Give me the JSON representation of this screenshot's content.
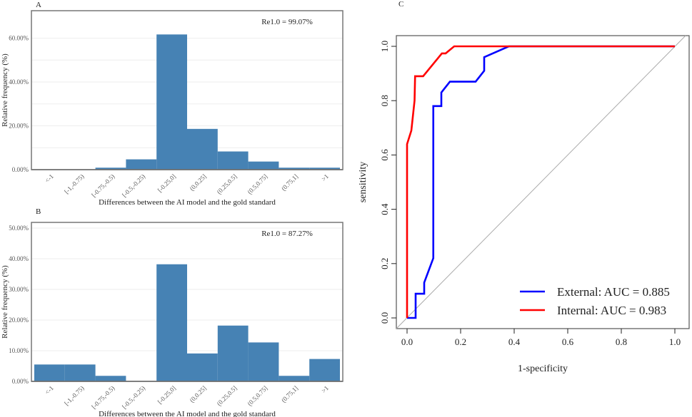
{
  "chart_data": [
    {
      "type": "bar",
      "panel": "A",
      "title": "",
      "annotation": "Re1.0 = 99.07%",
      "xlabel": "Differences between the AI model and the gold standard",
      "ylabel": "Relative frequency (%)",
      "categories": [
        "<-1",
        "[-1,-0.75)",
        "[-0.75,-0.5)",
        "[-0.5,-0.25)",
        "[-0.25,0]",
        "(0,0.25]",
        "(0.25,0.5]",
        "(0.5,0.75]",
        "(0.75,1]",
        ">1"
      ],
      "values": [
        0,
        0,
        0.9,
        4.7,
        61.7,
        18.6,
        8.3,
        3.7,
        0.9,
        0.9
      ],
      "ylim": [
        0,
        70
      ],
      "yticks": [
        0,
        20,
        40,
        60
      ],
      "ytick_labels": [
        "0.00%",
        "20.00%",
        "40.00%",
        "60.00%"
      ],
      "color": "#4682B4",
      "grid": true
    },
    {
      "type": "bar",
      "panel": "B",
      "title": "",
      "annotation": "Re1.0 = 87.27%",
      "xlabel": "Differences between the AI model and the gold standard",
      "ylabel": "Relative frequency (%)",
      "categories": [
        "<-1",
        "[-1,-0.75)",
        "[-0.75,-0.5)",
        "[-0.5,-0.25)",
        "[-0.25,0]",
        "(0,0.25]",
        "(0.25,0.5]",
        "(0.5,0.75]",
        "(0.75,1]",
        ">1"
      ],
      "values": [
        5.5,
        5.5,
        1.8,
        0,
        38.2,
        9.1,
        18.2,
        12.7,
        1.8,
        7.3
      ],
      "ylim": [
        0,
        50
      ],
      "yticks": [
        0,
        10,
        20,
        30,
        40,
        50
      ],
      "ytick_labels": [
        "0.00%",
        "10.00%",
        "20.00%",
        "30.00%",
        "40.00%",
        "50.00%"
      ],
      "color": "#4682B4",
      "grid": true
    },
    {
      "type": "line",
      "panel": "C",
      "title": "",
      "xlabel": "1-specificity",
      "ylabel": "sensitivity",
      "xlim": [
        0,
        1
      ],
      "ylim": [
        0,
        1
      ],
      "xticks": [
        "0.0",
        "0.2",
        "0.4",
        "0.6",
        "0.8",
        "1.0"
      ],
      "yticks": [
        "0.0",
        "0.2",
        "0.4",
        "0.6",
        "0.8",
        "1.0"
      ],
      "legend_position": "bottom-right",
      "series": [
        {
          "name": "External: AUC = 0.885",
          "color": "#0000FF",
          "x": [
            0,
            0.032,
            0.032,
            0.064,
            0.064,
            0.098,
            0.098,
            0.128,
            0.128,
            0.16,
            0.256,
            0.288,
            0.288,
            0.38,
            1
          ],
          "y": [
            0,
            0,
            0.089,
            0.089,
            0.13,
            0.22,
            0.78,
            0.78,
            0.83,
            0.87,
            0.87,
            0.91,
            0.96,
            1,
            1
          ]
        },
        {
          "name": "Internal: AUC = 0.983",
          "color": "#FF0000",
          "x": [
            0,
            0,
            0.016,
            0.028,
            0.03,
            0.06,
            0.13,
            0.144,
            0.176,
            1
          ],
          "y": [
            0,
            0.64,
            0.69,
            0.8,
            0.89,
            0.89,
            0.974,
            0.974,
            1,
            1
          ]
        },
        {
          "name": "reference",
          "color": "#AAAAAA",
          "x": [
            0,
            1
          ],
          "y": [
            0,
            1
          ]
        }
      ]
    }
  ]
}
